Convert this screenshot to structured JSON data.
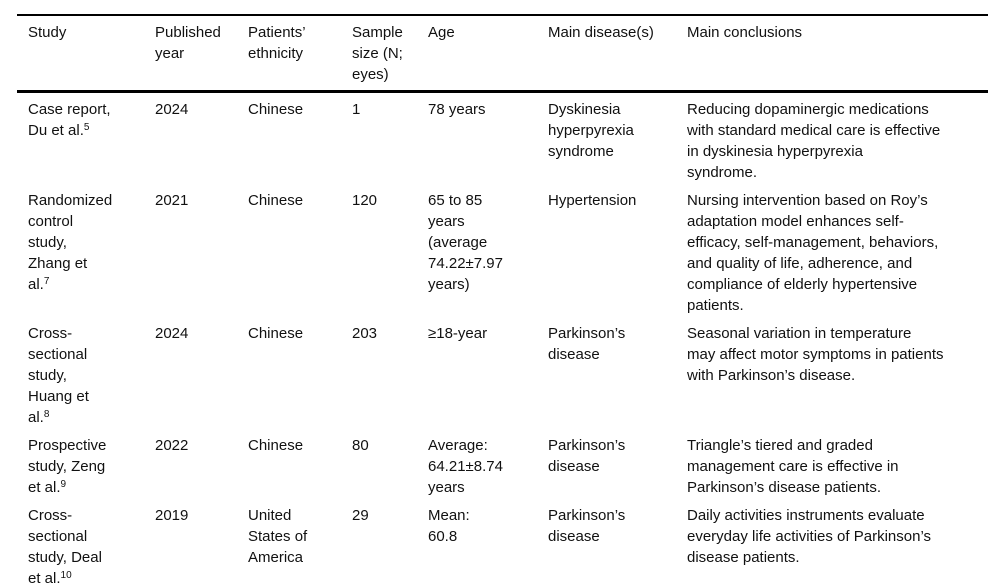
{
  "page": {
    "background_color": "#ffffff",
    "text_color": "#111111",
    "rule_color": "#000000"
  },
  "table": {
    "columns": [
      {
        "id": "study",
        "label": "Study"
      },
      {
        "id": "published_year",
        "label": "Published\nyear"
      },
      {
        "id": "ethnicity",
        "label": "Patients’\nethnicity"
      },
      {
        "id": "sample_size",
        "label": "Sample\nsize (N;\neyes)"
      },
      {
        "id": "age",
        "label": "Age"
      },
      {
        "id": "main_diseases",
        "label": "Main disease(s)"
      },
      {
        "id": "main_conclusions",
        "label": "Main conclusions"
      }
    ],
    "rows": [
      {
        "study": "Case report,\nDu et al.",
        "study_ref": "5",
        "published_year": "2024",
        "ethnicity": "Chinese",
        "sample_size": "1",
        "age": "78 years",
        "main_diseases": "Dyskinesia\nhyperpyrexia\nsyndrome",
        "main_conclusions": "Reducing dopaminergic medications\nwith standard medical care is effective\nin dyskinesia hyperpyrexia\nsyndrome."
      },
      {
        "study": "Randomized\ncontrol\nstudy,\nZhang et\nal.",
        "study_ref": "7",
        "published_year": "2021",
        "ethnicity": "Chinese",
        "sample_size": "120",
        "age": "65 to 85\nyears\n(average\n74.22±7.97\nyears)",
        "main_diseases": "Hypertension",
        "main_conclusions": "Nursing intervention based on Roy’s\nadaptation model enhances self-\nefficacy, self-management, behaviors,\nand quality of life, adherence, and\ncompliance of elderly hypertensive\npatients."
      },
      {
        "study": "Cross-\nsectional\nstudy,\nHuang et\nal.",
        "study_ref": "8",
        "published_year": "2024",
        "ethnicity": "Chinese",
        "sample_size": "203",
        "age": "≥18-year",
        "main_diseases": "Parkinson’s\ndisease",
        "main_conclusions": "Seasonal variation in temperature\nmay affect motor symptoms in patients\nwith Parkinson’s disease."
      },
      {
        "study": "Prospective\nstudy, Zeng\net al.",
        "study_ref": "9",
        "published_year": "2022",
        "ethnicity": "Chinese",
        "sample_size": "80",
        "age": "Average:\n64.21±8.74\nyears",
        "main_diseases": "Parkinson’s\ndisease",
        "main_conclusions": "Triangle’s tiered and graded\nmanagement care is effective in\nParkinson’s disease patients."
      },
      {
        "study": "Cross-\nsectional\nstudy, Deal\net al.",
        "study_ref": "10",
        "published_year": "2019",
        "ethnicity": "United\nStates of\nAmerica",
        "sample_size": "29",
        "age": "Mean:\n60.8",
        "main_diseases": "Parkinson’s\ndisease",
        "main_conclusions": "Daily activities instruments evaluate\neveryday life activities of Parkinson’s\ndisease patients."
      }
    ]
  }
}
